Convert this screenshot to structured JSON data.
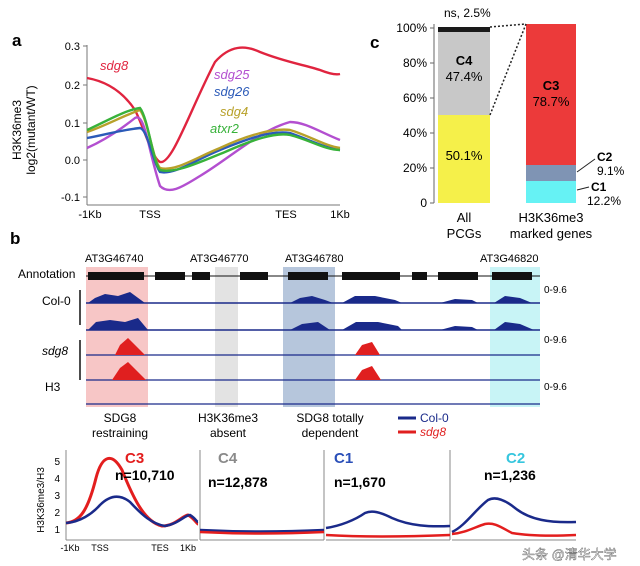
{
  "panel_a": {
    "label": "a",
    "ylabel_line1": "H3K36me3",
    "ylabel_line2": "log2(mutant/WT)",
    "yticks": [
      "0.3",
      "0.2",
      "0.1",
      "0.0",
      "-0.1"
    ],
    "xticks": [
      "-1Kb",
      "TSS",
      "TES",
      "1Kb"
    ],
    "legend": [
      "sdg8",
      "sdg25",
      "sdg26",
      "sdg4",
      "atxr2"
    ],
    "colors": {
      "sdg8": "#e0243f",
      "sdg25": "#b34fd0",
      "sdg26": "#2b5ab8",
      "sdg4": "#b8a12a",
      "atxr2": "#38b23a"
    }
  },
  "panel_c": {
    "label": "c",
    "yticks": [
      "100%",
      "80%",
      "60%",
      "40%",
      "20%",
      "0"
    ],
    "top_note": "ns, 2.5%",
    "bar1": {
      "c4_name": "C4",
      "c4_pct": "47.4%",
      "c1_pct": "50.1%",
      "label1": "All",
      "label2": "PCGs"
    },
    "bar2": {
      "c3_name": "C3",
      "c3_pct": "78.7%",
      "c2_name": "C2",
      "c2_pct": "9.1%",
      "c1_name": "C1",
      "c1_pct": "12.2%",
      "label1": "H3K36me3",
      "label2": "marked genes"
    },
    "colors": {
      "c4": "#c8c8c8",
      "c1_yellow": "#f5f04a",
      "c3": "#ec3a3a",
      "c2": "#7f94b4",
      "c1_cyan": "#66f2f4",
      "top": "#1a1a1a"
    }
  },
  "panel_b": {
    "label": "b",
    "genes": [
      "AT3G46740",
      "AT3G46770",
      "AT3G46780",
      "AT3G46820"
    ],
    "track_labels": [
      "Annotation",
      "Col-0",
      "sdg8",
      "H3"
    ],
    "scale": [
      "0-9.6",
      "0-9.6",
      "0-9.6"
    ],
    "annotations": [
      {
        "line1": "SDG8",
        "line2": "restraining"
      },
      {
        "line1": "H3K36me3",
        "line2": "absent"
      },
      {
        "line1": "SDG8 totally",
        "line2": "dependent"
      }
    ],
    "legend": [
      "Col-0",
      "sdg8"
    ],
    "colors": {
      "col0": "#1a2a8a",
      "sdg8": "#e01f1f",
      "restraining": "#f7c6c6",
      "absent": "#e3e3e3",
      "dependent": "#b6c6dc",
      "c2bg": "#c8f4f6"
    }
  },
  "panel_bottom": {
    "ylabel": "H3K36me3/H3",
    "yticks": [
      "5",
      "4",
      "3",
      "2",
      "1"
    ],
    "xticks": [
      "-1Kb",
      "TSS",
      "TES",
      "1Kb"
    ],
    "clusters": [
      {
        "name": "C3",
        "n": "n=10,710",
        "color": "#e31e1e"
      },
      {
        "name": "C4",
        "n": "n=12,878",
        "color": "#8a8a8a"
      },
      {
        "name": "C1",
        "n": "n=1,670",
        "color": "#2a4fb8"
      },
      {
        "name": "C2",
        "n": "n=1,236",
        "color": "#36c6de"
      }
    ]
  },
  "watermark": "头条 @清华大学"
}
